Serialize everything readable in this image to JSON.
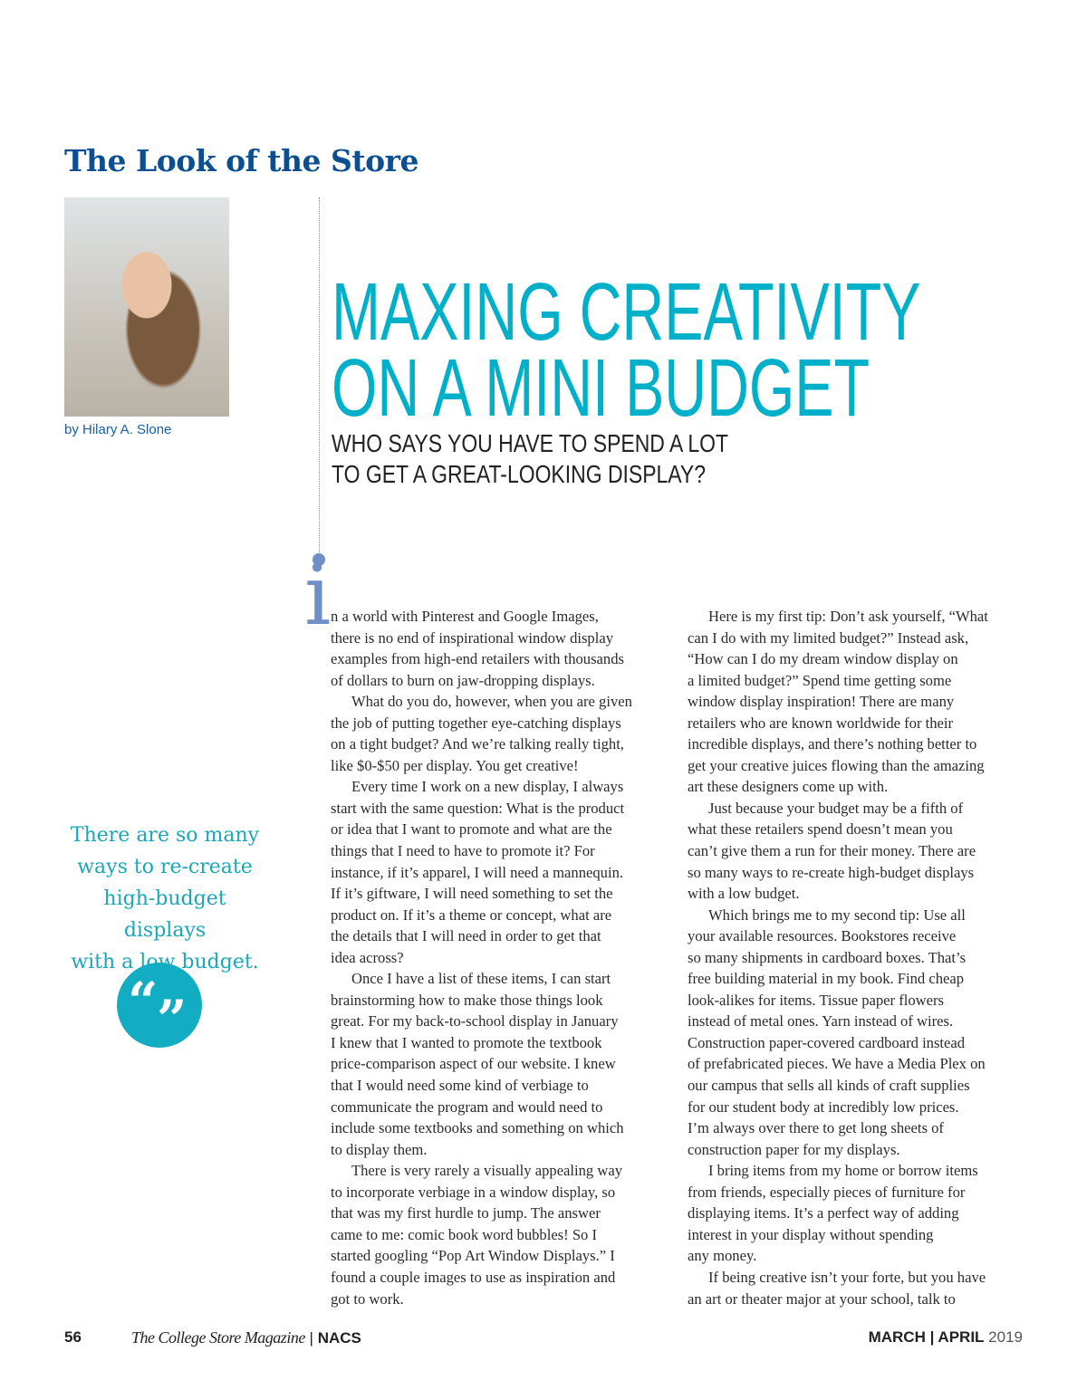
{
  "section_title": "The Look of the Store",
  "byline": "by Hilary A. Slone",
  "headline": [
    "MAXING CREATIVITY",
    "ON A MINI BUDGET"
  ],
  "subhead": [
    "WHO SAYS YOU HAVE TO SPEND A LOT",
    "TO GET A GREAT-LOOKING DISPLAY?"
  ],
  "drop_cap": "i",
  "pull_quote": [
    "There are so many",
    "ways to re-create",
    "high-budget displays",
    "with a low budget."
  ],
  "quote_icon": "quotation-marks-icon",
  "colors": {
    "section": "#0b4f92",
    "headline": "#00b0c8",
    "pull_quote": "#1aa7b8",
    "drop_cap": "#6f8fc7"
  },
  "columns": [
    [
      {
        "indent": false,
        "lines": [
          "n a world with Pinterest and Google Images,",
          "there is no end of inspirational window display",
          "examples from high-end retailers with thousands",
          "of dollars to burn on jaw-dropping displays."
        ]
      },
      {
        "indent": true,
        "lines": [
          "What do you do, however, when you are given",
          "the job of putting together eye-catching displays",
          "on a tight budget? And we’re talking really tight,",
          "like $0-$50 per display. You get creative!"
        ]
      },
      {
        "indent": true,
        "lines": [
          "Every time I work on a new display, I always",
          "start with the same question: What is the product",
          "or idea that I want to promote and what are the",
          "things that I need to have to promote it? For",
          "instance, if it’s apparel, I will need a mannequin.",
          "If it’s giftware, I will need something to set the",
          "product on. If it’s a theme or concept, what are",
          "the details that I will need in order to get that",
          "idea across?"
        ]
      },
      {
        "indent": true,
        "lines": [
          "Once I have a list of these items, I can start",
          "brainstorming how to make those things look",
          "great. For my back-to-school display in January",
          "I knew that I wanted to promote the textbook",
          "price-comparison aspect of our website. I knew",
          "that I would need some kind of verbiage to",
          "communicate the program and would need to",
          "include some textbooks and something on which",
          "to display them."
        ]
      },
      {
        "indent": true,
        "lines": [
          "There is very rarely a visually appealing way",
          "to incorporate verbiage in a window display, so",
          "that was my first hurdle to jump. The answer",
          "came to me: comic book word bubbles! So I",
          "started googling “Pop Art Window Displays.” I",
          "found a couple images to use as inspiration and",
          "got to work."
        ]
      }
    ],
    [
      {
        "indent": true,
        "lines": [
          "Here is my first tip: Don’t ask yourself, “What",
          "can I do with my limited budget?” Instead ask,",
          "“How can I do my dream window display on",
          "a limited budget?” Spend time getting some",
          "window display inspiration! There are many",
          "retailers who are known worldwide for their",
          "incredible displays, and there’s nothing better to",
          "get your creative juices flowing than the amazing",
          "art these designers come up with."
        ]
      },
      {
        "indent": true,
        "lines": [
          "Just because your budget may be a fifth of",
          "what these retailers spend doesn’t mean you",
          "can’t give them a run for their money. There are",
          "so many ways to re-create high-budget displays",
          "with a low budget."
        ]
      },
      {
        "indent": true,
        "lines": [
          "Which brings me to my second tip: Use all",
          "your available resources. Bookstores receive",
          "so many shipments in cardboard boxes. That’s",
          "free building material in my book. Find cheap",
          "look-alikes for items. Tissue paper flowers",
          "instead of metal ones. Yarn instead of wires.",
          "Construction paper-covered cardboard instead",
          "of prefabricated pieces. We have a Media Plex on",
          "our campus that sells all kinds of craft supplies",
          "for our student body at incredibly low prices.",
          "I’m always over there to get long sheets of",
          "construction paper for my displays."
        ]
      },
      {
        "indent": true,
        "lines": [
          "I bring items from my home or borrow items",
          "from friends, especially pieces of furniture for",
          "displaying items. It’s a perfect way of adding",
          "interest in your display without spending",
          "any money."
        ]
      },
      {
        "indent": true,
        "lines": [
          "If being creative isn’t your forte, but you have",
          "an art or theater major at your school, talk to"
        ]
      }
    ]
  ],
  "footer": {
    "page_number": "56",
    "magazine": "The College Store Magazine",
    "separator": "|",
    "org": "NACS",
    "month": "MARCH | APRIL",
    "year": "2019"
  }
}
